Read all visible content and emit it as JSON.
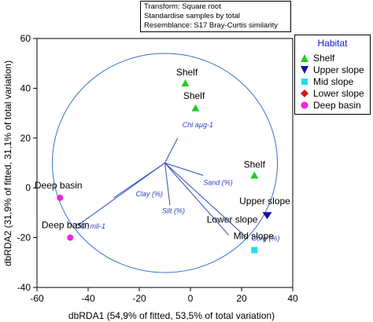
{
  "info": {
    "transform": "Transform: Square root",
    "standardise": "Standardise samples by total",
    "resemblance": "Resemblance: S17 Bray-Curtis similarity"
  },
  "legend": {
    "title": "Habitat",
    "items": [
      {
        "label": "Shelf",
        "marker": "triangle-up",
        "color": "#22cc22"
      },
      {
        "label": "Upper slope",
        "marker": "triangle-down",
        "color": "#1111aa"
      },
      {
        "label": "Mid slope",
        "marker": "square",
        "color": "#22ddee"
      },
      {
        "label": "Lower slope",
        "marker": "diamond",
        "color": "#dd1111"
      },
      {
        "label": "Deep basin",
        "marker": "circle",
        "color": "#ee22dd"
      }
    ]
  },
  "chart_data": {
    "type": "scatter",
    "title": "",
    "xlabel": "dbRDA1 (54,9% of fitted, 53,5% of total variation)",
    "ylabel": "dbRDA2 (31,9% of fitted, 31,1% of total variation)",
    "xlim": [
      -60,
      40
    ],
    "ylim": [
      -40,
      60
    ],
    "xticks": [
      -60,
      -40,
      -20,
      0,
      20,
      40
    ],
    "yticks": [
      -40,
      -20,
      0,
      20,
      40,
      60
    ],
    "xtick_labels": [
      "-60",
      "-40",
      "-20",
      "0",
      "20",
      "40"
    ],
    "ytick_labels": [
      "-40",
      "-20",
      "0",
      "20",
      "40",
      "60"
    ],
    "points": [
      {
        "x": -2,
        "y": 42,
        "habitat": "Shelf",
        "label": "Shelf"
      },
      {
        "x": 2,
        "y": 32,
        "habitat": "Shelf",
        "label": "Shelf"
      },
      {
        "x": 25,
        "y": 5,
        "habitat": "Shelf",
        "label": "Shelf"
      },
      {
        "x": 30,
        "y": -11,
        "habitat": "Upper slope",
        "label": "Upper slope"
      },
      {
        "x": 25,
        "y": -25,
        "habitat": "Mid slope",
        "label": "Mid slope"
      },
      {
        "x": -51,
        "y": -4,
        "habitat": "Deep basin",
        "label": "Deep basin"
      },
      {
        "x": -47,
        "y": -20,
        "habitat": "Deep basin",
        "label": "Deep basin"
      }
    ],
    "circle": {
      "center": [
        -10,
        10
      ],
      "radius": 44
    },
    "vectors": [
      {
        "label": "Chl aµg-1",
        "x": -5,
        "y": 20
      },
      {
        "label": "Sand (%)",
        "x": 5,
        "y": 5
      },
      {
        "label": "Clay (%)",
        "x": -30,
        "y": -4
      },
      {
        "label": "Silt (%)",
        "x": -8,
        "y": -7
      },
      {
        "label": "DO_mll-1",
        "x": -44,
        "y": -15
      },
      {
        "label": "Lower slope",
        "x": 15,
        "y": -19
      },
      {
        "label": "Corg (%)",
        "x": 22,
        "y": -20
      }
    ]
  }
}
